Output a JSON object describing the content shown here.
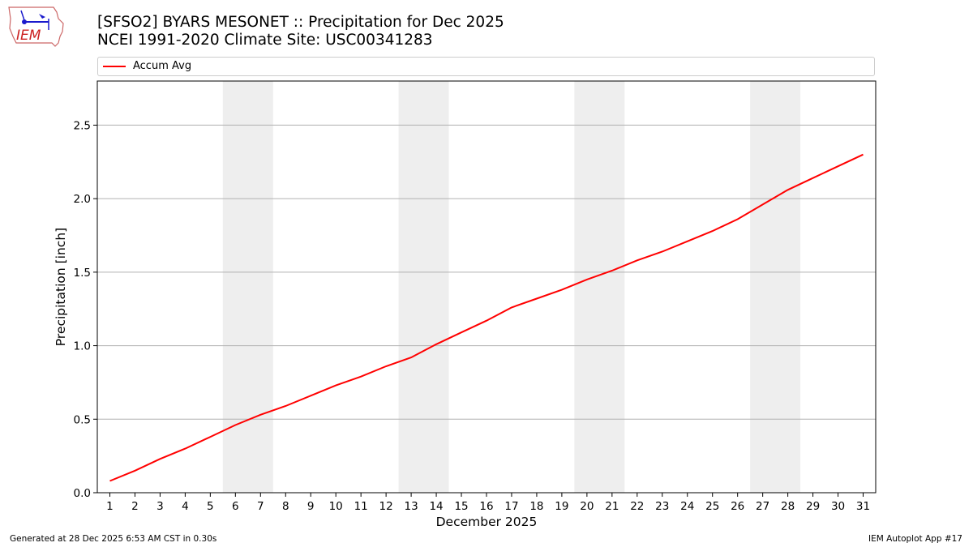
{
  "header": {
    "title_line1": "[SFSO2] BYARS MESONET :: Precipitation for Dec 2025",
    "title_line2": "NCEI 1991-2020 Climate Site: USC00341283",
    "logo_text": "IEM"
  },
  "legend": {
    "items": [
      {
        "label": "Accum Avg",
        "color": "#ff0000"
      }
    ]
  },
  "footer": {
    "generated": "Generated at 28 Dec 2025 6:53 AM CST in 0.30s",
    "app": "IEM Autoplot App #17"
  },
  "colors": {
    "line": "#ff0000",
    "weekend_band": "#eeeeee",
    "grid": "#b0b0b0",
    "logo_red": "#cc2222",
    "logo_blue": "#1a1acc"
  },
  "chart_data": {
    "type": "line",
    "title": "[SFSO2] BYARS MESONET :: Precipitation for Dec 2025 / NCEI 1991-2020 Climate Site: USC00341283",
    "xlabel": "December 2025",
    "ylabel": "Precipitation [inch]",
    "xlim": [
      0.5,
      31.5
    ],
    "ylim": [
      0,
      2.8
    ],
    "yticks": [
      0.0,
      0.5,
      1.0,
      1.5,
      2.0,
      2.5
    ],
    "ytick_labels": [
      "0.0",
      "0.5",
      "1.0",
      "1.5",
      "2.0",
      "2.5"
    ],
    "x": [
      1,
      2,
      3,
      4,
      5,
      6,
      7,
      8,
      9,
      10,
      11,
      12,
      13,
      14,
      15,
      16,
      17,
      18,
      19,
      20,
      21,
      22,
      23,
      24,
      25,
      26,
      27,
      28,
      29,
      30,
      31
    ],
    "series": [
      {
        "name": "Accum Avg",
        "color": "#ff0000",
        "values": [
          0.08,
          0.15,
          0.23,
          0.3,
          0.38,
          0.46,
          0.53,
          0.59,
          0.66,
          0.73,
          0.79,
          0.86,
          0.92,
          1.01,
          1.09,
          1.17,
          1.26,
          1.32,
          1.38,
          1.45,
          1.51,
          1.58,
          1.64,
          1.71,
          1.78,
          1.86,
          1.96,
          2.06,
          2.14,
          2.22,
          2.3
        ]
      }
    ],
    "shaded_bands": [
      [
        5.5,
        7.5
      ],
      [
        12.5,
        14.5
      ],
      [
        19.5,
        21.5
      ],
      [
        26.5,
        28.5
      ]
    ],
    "grid": "y-major",
    "legend_position": "top, above axes"
  }
}
